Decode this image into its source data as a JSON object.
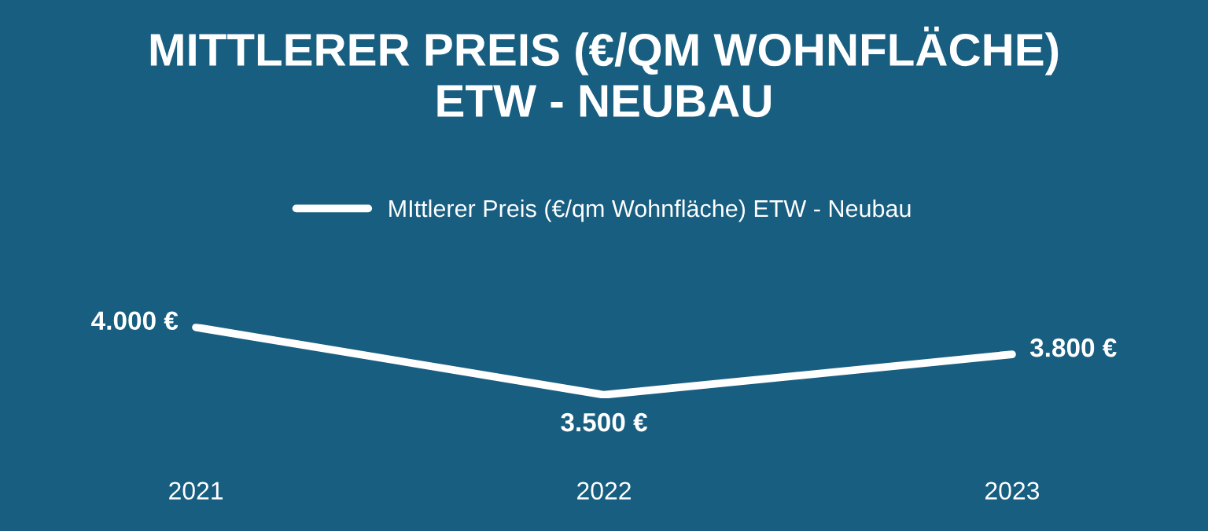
{
  "chart_data": {
    "type": "line",
    "title": "MITTLERER PREIS (€/QM WOHNFLÄCHE)\nETW - NEUBAU",
    "categories": [
      "2021",
      "2022",
      "2023"
    ],
    "series": [
      {
        "name": "MIttlerer Preis (€/qm Wohnfläche) ETW - Neubau",
        "color": "#ffffff",
        "values": [
          4000,
          3500,
          3800
        ],
        "value_labels": [
          "4.000 €",
          "3.500 €",
          "3.800 €"
        ]
      }
    ],
    "legend": "top",
    "grid": false,
    "marker": "none",
    "line_style": "solid"
  }
}
